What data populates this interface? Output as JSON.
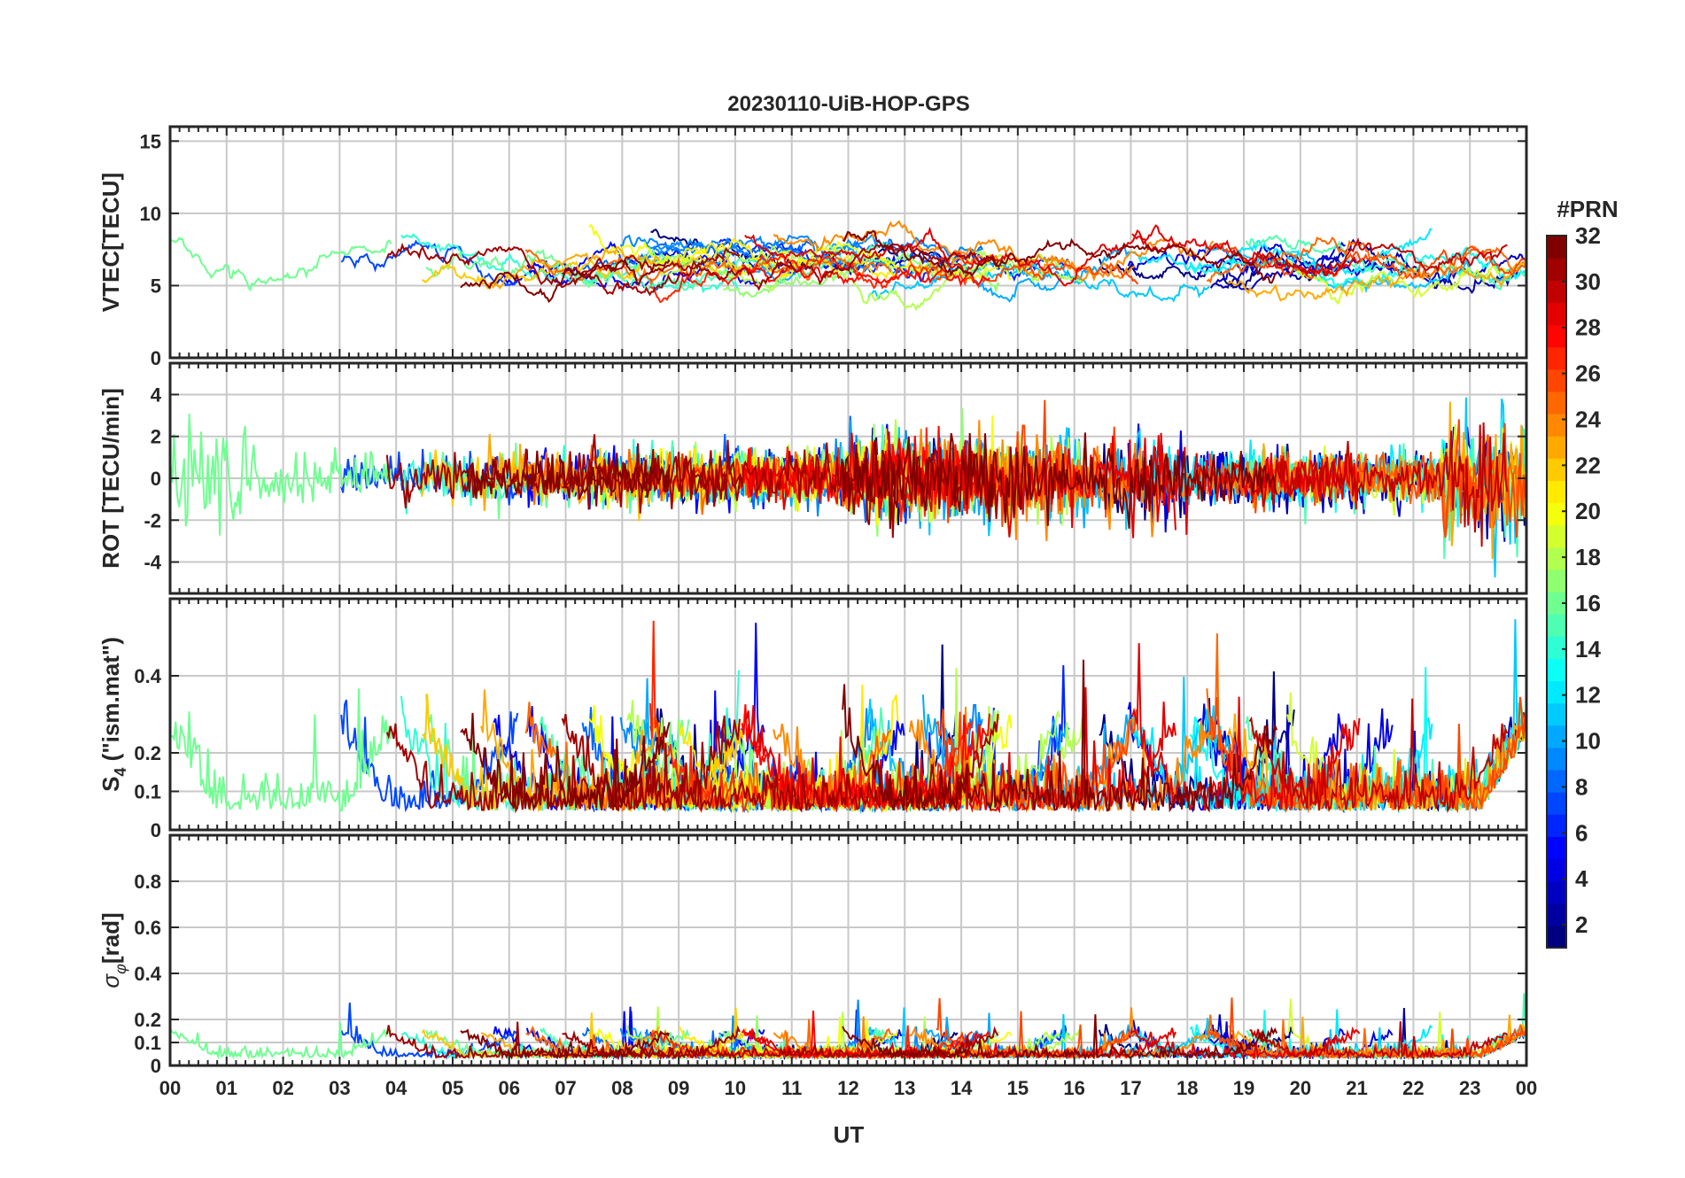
{
  "figure": {
    "title": "20230110-UiB-HOP-GPS",
    "xlabel": "UT"
  },
  "chart_data": [
    {
      "type": "line",
      "panel": "vtec",
      "ylabel": "VTEC[TECU]",
      "ylim": [
        0,
        16
      ],
      "yticks": [
        0,
        5,
        10,
        15
      ],
      "ytick_labels": [
        "0",
        "5",
        "10",
        "15"
      ],
      "xlim": [
        0,
        24
      ],
      "grid": true,
      "baseline": 6.5,
      "amplitude": 2.6,
      "noise": 0.55,
      "series_per_prn": true,
      "note_series": "one trace per GPS PRN 1-32, colour mapped by PRN"
    },
    {
      "type": "line",
      "panel": "rot",
      "ylabel": "ROT [TECU/min]",
      "ylim": [
        -5.5,
        5.5
      ],
      "yticks": [
        -4,
        -2,
        0,
        2,
        4
      ],
      "ytick_labels": [
        "-4",
        "-2",
        "0",
        "2",
        "4"
      ],
      "xlim": [
        0,
        24
      ],
      "grid": true,
      "baseline": 0,
      "amplitude": 0,
      "noise": 0.6,
      "series_per_prn": true
    },
    {
      "type": "line",
      "panel": "s4",
      "ylabel": "S4 (\"ism.mat\")",
      "ylabel_parts": {
        "main": "S",
        "sub": "4",
        "rest": " (\"ism.mat\")"
      },
      "ylim": [
        0,
        0.6
      ],
      "yticks": [
        0,
        0.1,
        0.2,
        0.4
      ],
      "ytick_labels": [
        "0",
        "0.1",
        "0.2",
        "0.4"
      ],
      "xlim": [
        0,
        24
      ],
      "grid": true,
      "baseline": 0.05,
      "amplitude": 0.03,
      "noise": 0.05,
      "series_per_prn": true
    },
    {
      "type": "line",
      "panel": "sigma_phi",
      "ylabel": "σφ[rad]",
      "ylabel_parts": {
        "main": "σ",
        "sub": "φ",
        "rest": "[rad]"
      },
      "ylim": [
        0,
        1
      ],
      "yticks": [
        0,
        0.1,
        0.2,
        0.4,
        0.6,
        0.8
      ],
      "ytick_labels": [
        "0",
        "0.1",
        "0.2",
        "0.4",
        "0.6",
        "0.8"
      ],
      "xlim": [
        0,
        24
      ],
      "grid": true,
      "baseline": 0.035,
      "amplitude": 0.01,
      "noise": 0.02,
      "series_per_prn": true
    }
  ],
  "x_axis": {
    "range_hours": [
      0,
      24
    ],
    "tick_labels": [
      "00",
      "01",
      "02",
      "03",
      "04",
      "05",
      "06",
      "07",
      "08",
      "09",
      "10",
      "11",
      "12",
      "13",
      "14",
      "15",
      "16",
      "17",
      "18",
      "19",
      "20",
      "21",
      "22",
      "23",
      "00"
    ]
  },
  "colorbar": {
    "title": "#PRN",
    "range": [
      1,
      32
    ],
    "ticks": [
      2,
      4,
      6,
      8,
      10,
      12,
      14,
      16,
      18,
      20,
      22,
      24,
      26,
      28,
      30,
      32
    ],
    "tick_labels": [
      "2",
      "4",
      "6",
      "8",
      "10",
      "12",
      "14",
      "16",
      "18",
      "20",
      "22",
      "24",
      "26",
      "28",
      "30",
      "32"
    ],
    "colormap": "jet"
  },
  "colors": {
    "axis": "#262626",
    "grid": "#c8c8c8"
  }
}
